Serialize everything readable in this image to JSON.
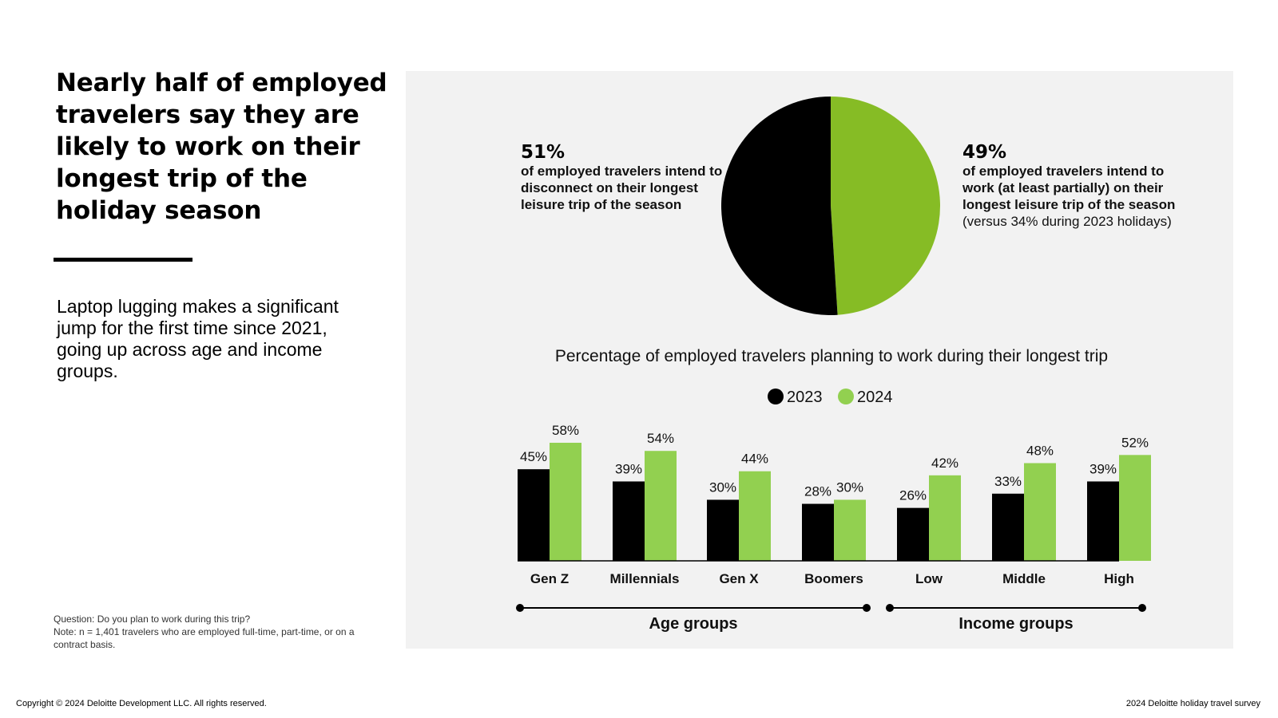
{
  "headline": "Nearly half of employed travelers say they are likely to work on their longest trip of the holiday season",
  "subtext": "Laptop lugging makes a significant jump for the first time since 2021, going up across age and income groups.",
  "footnote": {
    "question": "Question: Do you plan to work during this trip?",
    "note": "Note: n = 1,401 travelers who are employed full-time, part-time, or on a contract basis."
  },
  "footer": {
    "copyright": "Copyright © 2024 Deloitte Development LLC. All rights reserved.",
    "source": "2024 Deloitte holiday travel survey"
  },
  "colors": {
    "black": "#000000",
    "green": "#86bc25",
    "green_light": "#92d050",
    "panel": "#f2f2f2"
  },
  "pie": {
    "left_stat": {
      "value": "51%",
      "text": "of employed travelers intend to disconnect on their longest leisure trip of the season"
    },
    "right_stat": {
      "value": "49%",
      "text": "of employed travelers intend to work (at least partially) on their longest leisure trip of the season",
      "note": "(versus 34% during 2023 holidays)"
    }
  },
  "chart_data": [
    {
      "type": "pie",
      "labels": [
        "Intend to disconnect",
        "Intend to work (at least partially)"
      ],
      "values": [
        51,
        49
      ],
      "colors": [
        "#000000",
        "#86bc25"
      ]
    },
    {
      "type": "bar",
      "title": "Percentage of employed travelers planning to work during their longest trip",
      "legend": [
        "2023",
        "2024"
      ],
      "legend_position": "top-center",
      "categories": [
        "Gen Z",
        "Millennials",
        "Gen X",
        "Boomers",
        "Low",
        "Middle",
        "High"
      ],
      "series": [
        {
          "name": "2023",
          "values": [
            45,
            39,
            30,
            28,
            26,
            33,
            39
          ],
          "color": "#000000"
        },
        {
          "name": "2024",
          "values": [
            58,
            54,
            44,
            30,
            42,
            48,
            52
          ],
          "color": "#92d050"
        }
      ],
      "value_suffix": "%",
      "ylim": [
        0,
        60
      ],
      "groups": [
        {
          "label": "Age groups",
          "categories": [
            "Gen Z",
            "Millennials",
            "Gen X",
            "Boomers"
          ]
        },
        {
          "label": "Income groups",
          "categories": [
            "Low",
            "Middle",
            "High"
          ]
        }
      ]
    }
  ]
}
